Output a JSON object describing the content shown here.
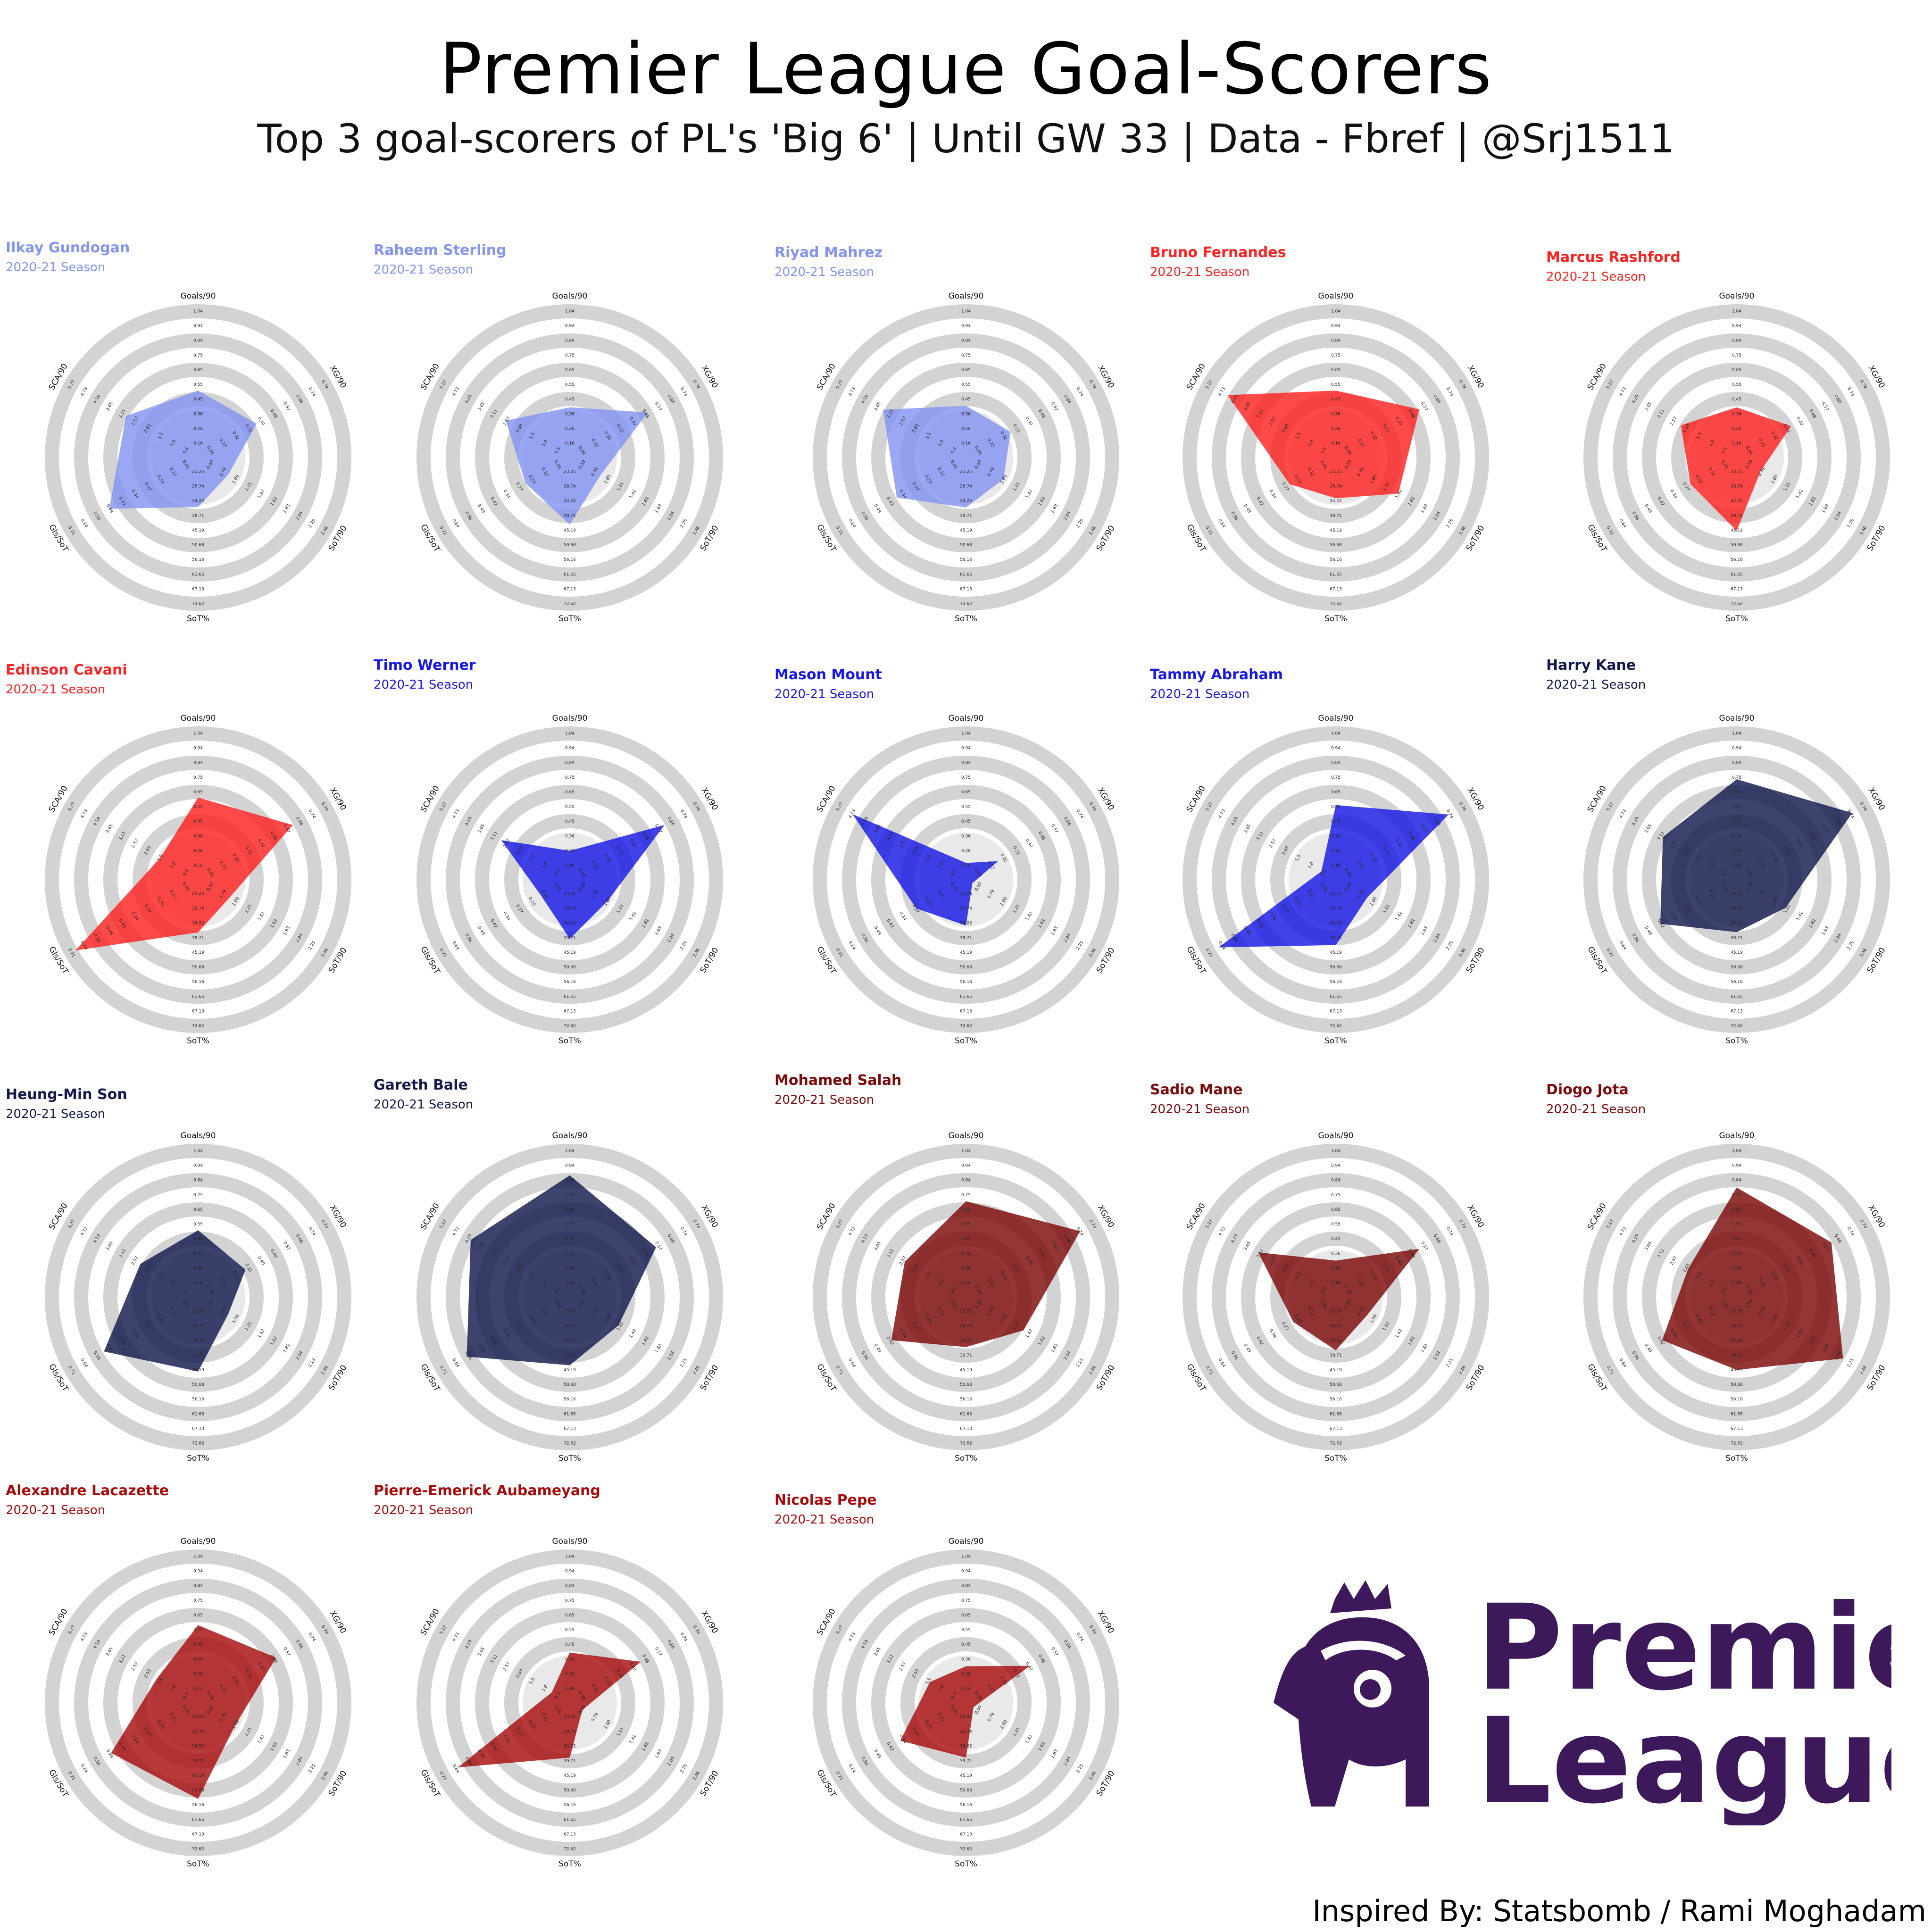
{
  "title": "Premier League Goal-Scorers",
  "subtitle": "Top 3 goal-scorers of PL's 'Big 6' | Until GW 33 | Data - Fbref | @Srj1511",
  "credit": "Inspired By: Statsbomb / Rami Moghadam",
  "logo": {
    "line1": "Premier",
    "line2": "League",
    "color": "#3d195b"
  },
  "chart_data": [
    {
      "type": "radar",
      "player": "Ilkay Gundogan",
      "season": "2020-21 Season",
      "color": "#8494f2",
      "axes": [
        "Goals/90",
        "XG/90",
        "SoT/90",
        "SoT%",
        "Gls/SoT",
        "SCA/90"
      ],
      "values": [
        0.55,
        0.44,
        0.98,
        38.7,
        0.52,
        4.2
      ]
    },
    {
      "type": "radar",
      "player": "Raheem Sterling",
      "season": "2020-21 Season",
      "color": "#8494f2",
      "axes": [
        "Goals/90",
        "XG/90",
        "SoT/90",
        "SoT%",
        "Gls/SoT",
        "SCA/90"
      ],
      "values": [
        0.44,
        0.58,
        0.99,
        45.19,
        0.27,
        3.75
      ]
    },
    {
      "type": "radar",
      "player": "Riyad Mahrez",
      "season": "2020-21 Season",
      "color": "#8494f2",
      "axes": [
        "Goals/90",
        "XG/90",
        "SoT/90",
        "SoT%",
        "Gls/SoT",
        "SCA/90"
      ],
      "values": [
        0.45,
        0.34,
        1.1,
        38.9,
        0.41,
        4.8
      ]
    },
    {
      "type": "radar",
      "player": "Bruno Fernandes",
      "season": "2020-21 Season",
      "color": "#ff2222",
      "axes": [
        "Goals/90",
        "XG/90",
        "SoT/90",
        "SoT%",
        "Gls/SoT",
        "SCA/90"
      ],
      "values": [
        0.55,
        0.62,
        1.5,
        35.5,
        0.28,
        6.2
      ]
    },
    {
      "type": "radar",
      "player": "Marcus Rashford",
      "season": "2020-21 Season",
      "color": "#ff2222",
      "axes": [
        "Goals/90",
        "XG/90",
        "SoT/90",
        "SoT%",
        "Gls/SoT",
        "SCA/90"
      ],
      "values": [
        0.44,
        0.41,
        0.88,
        47.5,
        0.28,
        3.3
      ]
    },
    {
      "type": "radar",
      "player": "Edinson Cavani",
      "season": "2020-21 Season",
      "color": "#ff2222",
      "axes": [
        "Goals/90",
        "XG/90",
        "SoT/90",
        "SoT%",
        "Gls/SoT",
        "SCA/90"
      ],
      "values": [
        0.65,
        0.7,
        1.0,
        39.9,
        0.75,
        2.3
      ]
    },
    {
      "type": "radar",
      "player": "Timo Werner",
      "season": "2020-21 Season",
      "color": "#1818e6",
      "axes": [
        "Goals/90",
        "XG/90",
        "SoT/90",
        "SoT%",
        "Gls/SoT",
        "SCA/90"
      ],
      "values": [
        0.3,
        0.7,
        1.1,
        42.3,
        0.18,
        4.0
      ]
    },
    {
      "type": "radar",
      "player": "Mason Mount",
      "season": "2020-21 Season",
      "color": "#1818e6",
      "axes": [
        "Goals/90",
        "XG/90",
        "SoT/90",
        "SoT%",
        "Gls/SoT",
        "SCA/90"
      ],
      "values": [
        0.22,
        0.25,
        0.6,
        37.4,
        0.3,
        6.5
      ]
    },
    {
      "type": "radar",
      "player": "Tammy Abraham",
      "season": "2020-21 Season",
      "color": "#1818e6",
      "axes": [
        "Goals/90",
        "XG/90",
        "SoT/90",
        "SoT%",
        "Gls/SoT",
        "SCA/90"
      ],
      "values": [
        0.6,
        0.83,
        1.0,
        44.6,
        0.68,
        1.0
      ]
    },
    {
      "type": "radar",
      "player": "Harry Kane",
      "season": "2020-21 Season",
      "color": "#141a4d",
      "axes": [
        "Goals/90",
        "XG/90",
        "SoT/90",
        "SoT%",
        "Gls/SoT",
        "SCA/90"
      ],
      "values": [
        0.77,
        0.85,
        1.28,
        39.8,
        0.45,
        4.3
      ]
    },
    {
      "type": "radar",
      "player": "Heung-Min Son",
      "season": "2020-21 Season",
      "color": "#141a4d",
      "axes": [
        "Goals/90",
        "XG/90",
        "SoT/90",
        "SoT%",
        "Gls/SoT",
        "SCA/90"
      ],
      "values": [
        0.55,
        0.36,
        0.98,
        47.9,
        0.55,
        3.4
      ]
    },
    {
      "type": "radar",
      "player": "Gareth Bale",
      "season": "2020-21 Season",
      "color": "#141a4d",
      "axes": [
        "Goals/90",
        "XG/90",
        "SoT/90",
        "SoT%",
        "Gls/SoT",
        "SCA/90"
      ],
      "values": [
        0.91,
        0.64,
        1.28,
        45.6,
        0.6,
        5.7
      ]
    },
    {
      "type": "radar",
      "player": "Mohamed Salah",
      "season": "2020-21 Season",
      "color": "#7d0a0a",
      "axes": [
        "Goals/90",
        "XG/90",
        "SoT/90",
        "SoT%",
        "Gls/SoT",
        "SCA/90"
      ],
      "values": [
        0.74,
        0.84,
        1.42,
        38.9,
        0.44,
        3.6
      ]
    },
    {
      "type": "radar",
      "player": "Sadio Mane",
      "season": "2020-21 Season",
      "color": "#7d0a0a",
      "axes": [
        "Goals/90",
        "XG/90",
        "SoT/90",
        "SoT%",
        "Gls/SoT",
        "SCA/90"
      ],
      "values": [
        0.35,
        0.62,
        1.0,
        40.1,
        0.26,
        4.5
      ]
    },
    {
      "type": "radar",
      "player": "Diogo Jota",
      "season": "2020-21 Season",
      "color": "#7d0a0a",
      "axes": [
        "Goals/90",
        "XG/90",
        "SoT/90",
        "SoT%",
        "Gls/SoT",
        "SCA/90"
      ],
      "values": [
        0.83,
        0.7,
        2.2,
        47.3,
        0.44,
        2.9
      ]
    },
    {
      "type": "radar",
      "player": "Alexandre Lacazette",
      "season": "2020-21 Season",
      "color": "#a80d0d",
      "axes": [
        "Goals/90",
        "XG/90",
        "SoT/90",
        "SoT%",
        "Gls/SoT",
        "SCA/90"
      ],
      "values": [
        0.62,
        0.58,
        1.1,
        55.9,
        0.51,
        2.5
      ]
    },
    {
      "type": "radar",
      "player": "Pierre-Emerick Aubameyang",
      "season": "2020-21 Season",
      "color": "#a80d0d",
      "axes": [
        "Goals/90",
        "XG/90",
        "SoT/90",
        "SoT%",
        "Gls/SoT",
        "SCA/90"
      ],
      "values": [
        0.44,
        0.53,
        0.7,
        40.7,
        0.65,
        1.2
      ]
    },
    {
      "type": "radar",
      "player": "Nicolas Pepe",
      "season": "2020-21 Season",
      "color": "#a80d0d",
      "axes": [
        "Goals/90",
        "XG/90",
        "SoT/90",
        "SoT%",
        "Gls/SoT",
        "SCA/90"
      ],
      "values": [
        0.35,
        0.48,
        0.62,
        40.7,
        0.39,
        2.2
      ]
    }
  ],
  "axis_ticks": {
    "Goals/90": [
      "0.16",
      "0.26",
      "0.36",
      "0.45",
      "0.55",
      "0.65",
      "0.75",
      "0.84",
      "0.94",
      "1.04"
    ],
    "XG/90": [
      "0.06",
      "0.15",
      "0.22",
      "0.31",
      "0.40",
      "0.48",
      "0.57",
      "0.66",
      "0.74",
      "0.74"
    ],
    "SoT/90": [
      "0.59",
      "0.79",
      "1.00",
      "1.21",
      "1.42",
      "1.62",
      "1.83",
      "2.04",
      "2.25",
      "2.46"
    ],
    "SoT%": [
      "23.25",
      "28.74",
      "34.22",
      "39.71",
      "45.19",
      "50.68",
      "56.16",
      "61.65",
      "67.13",
      "72.62"
    ],
    "Gls/SoT": [
      "0.05",
      "0.12",
      "0.20",
      "0.27",
      "0.34",
      "0.42",
      "0.49",
      "0.56",
      "0.64",
      "0.71"
    ],
    "SCA/90": [
      "0.5",
      "1.0",
      "1.5",
      "2.03",
      "2.57",
      "3.11",
      "3.65",
      "4.19",
      "4.73",
      "5.27"
    ]
  },
  "axis_ranges": {
    "Goals/90": [
      0.11,
      1.04
    ],
    "XG/90": [
      0.02,
      0.9
    ],
    "SoT/90": [
      0.5,
      2.46
    ],
    "SoT%": [
      20.5,
      72.62
    ],
    "Gls/SoT": [
      0.02,
      0.71
    ],
    "SCA/90": [
      0.2,
      7.0
    ]
  }
}
